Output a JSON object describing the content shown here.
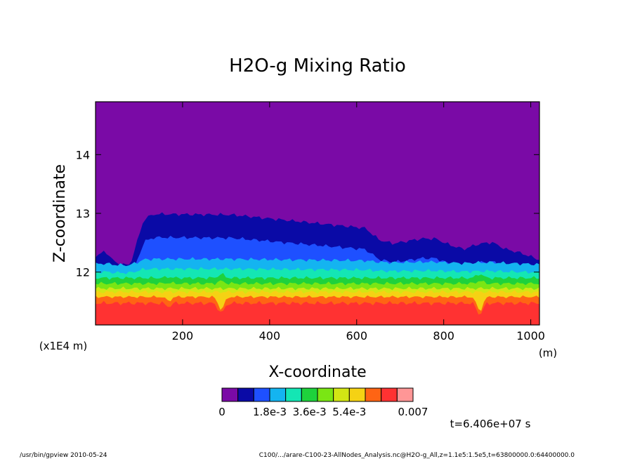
{
  "chart_data": {
    "type": "heatmap",
    "title": "H2O-g Mixing Ratio",
    "xlabel": "X-coordinate",
    "ylabel": "Z-coordinate",
    "x_unit": "(m)",
    "y_unit": "(x1E4 m)",
    "xlim": [
      0,
      1020
    ],
    "ylim": [
      11.1,
      14.9
    ],
    "x_ticks": [
      "200",
      "400",
      "600",
      "800",
      "1000"
    ],
    "y_ticks": [
      "12",
      "13",
      "14"
    ],
    "colorbar": {
      "colors": [
        "#7a0aa6",
        "#0a0aa6",
        "#1e50ff",
        "#14b4f0",
        "#14e6b4",
        "#1ed23c",
        "#7ae614",
        "#d2e614",
        "#f5d214",
        "#ff6414",
        "#ff3232",
        "#ff9696"
      ],
      "labels": [
        "0",
        "1.8e-3",
        "3.6e-3",
        "5.4e-3",
        "0.007"
      ]
    },
    "time_label": "t=6.406e+07 s",
    "footer_left": "/usr/bin/gpview   2010-05-24",
    "footer_right": "C100/.../arare-C100-23-AllNodes_Analysis.nc@H2O-g_All,z=1.1e5:1.5e5,t=63800000.0:64400000.0"
  }
}
